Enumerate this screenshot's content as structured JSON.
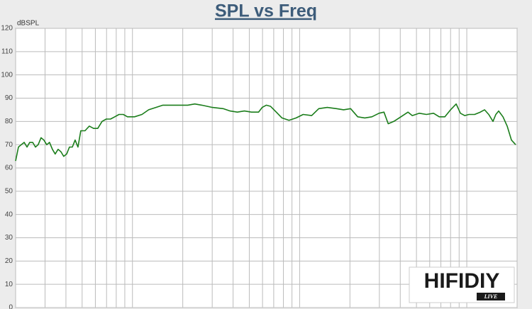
{
  "chart_data": {
    "type": "line",
    "title": "SPL vs Freq",
    "y_label": "dBSPL",
    "x": [
      20,
      20.8,
      21.6,
      22.5,
      23.4,
      24.3,
      25.3,
      26.3,
      27.3,
      28.4,
      29.5,
      30.7,
      31.9,
      33.2,
      34.5,
      35.9,
      37.3,
      38.8,
      40.4,
      42,
      43.7,
      45.4,
      47.2,
      49.1,
      52,
      55.2,
      58.5,
      62,
      65.8,
      69.7,
      73.9,
      78.4,
      83.1,
      88.1,
      93.4,
      103,
      114,
      125,
      138,
      152,
      185,
      214,
      236,
      260,
      301,
      349,
      384,
      424,
      467,
      515,
      568,
      597,
      632,
      670,
      725,
      784,
      864,
      953,
      1050,
      1181,
      1302,
      1464,
      1662,
      1832,
      2019,
      2226,
      2455,
      2707,
      2984,
      3196,
      3388,
      3662,
      4038,
      4452,
      4720,
      5205,
      5738,
      6325,
      6840,
      7394,
      7995,
      8641,
      9166,
      9717,
      10303,
      11136,
      12044,
      12770,
      13536,
      14350,
      14920,
      15515,
      16460,
      17450,
      18500,
      19610
    ],
    "values": [
      63,
      69,
      70,
      71,
      69,
      71,
      71,
      69,
      70,
      73,
      72,
      70,
      71,
      68,
      66,
      68,
      67,
      65,
      66,
      69,
      69,
      72,
      69,
      76,
      76,
      78,
      77,
      77,
      80,
      81,
      81,
      82,
      83,
      83,
      82,
      82,
      83,
      85,
      86,
      87,
      87,
      87,
      87.5,
      87,
      86,
      85.5,
      84.5,
      84,
      84.5,
      84,
      84,
      86,
      87,
      86.5,
      84,
      81.5,
      80.5,
      81.5,
      83,
      82.5,
      85.5,
      86,
      85.5,
      85,
      85.5,
      82,
      81.5,
      82,
      83.5,
      84,
      79,
      80,
      82,
      84,
      82.5,
      83.5,
      83,
      83.5,
      82,
      82,
      85,
      87.5,
      83.5,
      82.5,
      83,
      83,
      84,
      85,
      83,
      80,
      83,
      84.5,
      82,
      78,
      72,
      70
    ],
    "color": "#1b7d1b",
    "log_x": true,
    "xlim": [
      20,
      20000
    ],
    "xticks": [
      20,
      30,
      40,
      50,
      60,
      70,
      80,
      90,
      100,
      200,
      300,
      400,
      500,
      600,
      700,
      800,
      900,
      1000,
      2000,
      3000,
      4000,
      5000,
      6000,
      7000,
      8000,
      9000,
      10000,
      20000
    ],
    "ylim": [
      0,
      120
    ],
    "yticks": [
      0,
      10,
      20,
      30,
      40,
      50,
      60,
      70,
      80,
      90,
      100,
      110,
      120
    ],
    "grid": true
  },
  "logo": {
    "text": "HIFIDIY",
    "sub": "LIVE"
  }
}
